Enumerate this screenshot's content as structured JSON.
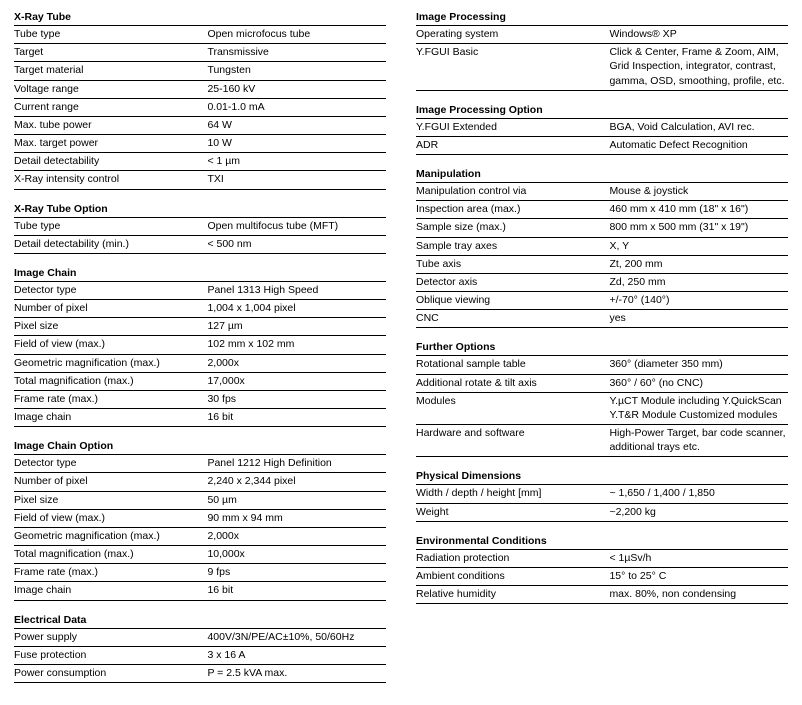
{
  "left": [
    {
      "title": "X-Ray Tube",
      "rows": [
        {
          "label": "Tube type",
          "value": "Open microfocus tube"
        },
        {
          "label": "Target",
          "value": "Transmissive"
        },
        {
          "label": "Target material",
          "value": "Tungsten"
        },
        {
          "label": "Voltage range",
          "value": "25-160 kV"
        },
        {
          "label": "Current range",
          "value": "0.01-1.0 mA"
        },
        {
          "label": "Max. tube power",
          "value": "64 W"
        },
        {
          "label": "Max. target power",
          "value": "10 W"
        },
        {
          "label": "Detail detectability",
          "value": "< 1 µm"
        },
        {
          "label": "X-Ray intensity control",
          "value": "TXI"
        }
      ]
    },
    {
      "title": "X-Ray Tube Option",
      "rows": [
        {
          "label": "Tube type",
          "value": "Open multifocus tube (MFT)"
        },
        {
          "label": "Detail detectability (min.)",
          "value": "< 500 nm"
        }
      ]
    },
    {
      "title": "Image Chain",
      "rows": [
        {
          "label": "Detector type",
          "value": "Panel 1313 High Speed"
        },
        {
          "label": "Number of pixel",
          "value": "1,004 x 1,004 pixel"
        },
        {
          "label": "Pixel size",
          "value": "127 µm"
        },
        {
          "label": "Field of view (max.)",
          "value": "102 mm x 102 mm"
        },
        {
          "label": "Geometric magnification (max.)",
          "value": "2,000x"
        },
        {
          "label": "Total magnification (max.)",
          "value": "17,000x"
        },
        {
          "label": "Frame rate (max.)",
          "value": "30 fps"
        },
        {
          "label": "Image chain",
          "value": "16 bit"
        }
      ]
    },
    {
      "title": "Image Chain Option",
      "rows": [
        {
          "label": "Detector type",
          "value": "Panel 1212 High Definition"
        },
        {
          "label": "Number of pixel",
          "value": "2,240 x 2,344 pixel"
        },
        {
          "label": "Pixel size",
          "value": "50 µm"
        },
        {
          "label": "Field of view (max.)",
          "value": "90 mm x 94 mm"
        },
        {
          "label": "Geometric magnification (max.)",
          "value": "2,000x"
        },
        {
          "label": "Total magnification (max.)",
          "value": "10,000x"
        },
        {
          "label": "Frame rate (max.)",
          "value": "9 fps"
        },
        {
          "label": "Image chain",
          "value": "16 bit"
        }
      ]
    },
    {
      "title": "Electrical Data",
      "rows": [
        {
          "label": "Power supply",
          "value": "400V/3N/PE/AC±10%, 50/60Hz"
        },
        {
          "label": "Fuse protection",
          "value": "3 x 16 A"
        },
        {
          "label": "Power consumption",
          "value": "P = 2.5 kVA max."
        }
      ]
    }
  ],
  "right": [
    {
      "title": "Image Processing",
      "rows": [
        {
          "label": "Operating system",
          "value": "Windows® XP"
        },
        {
          "label": "Y.FGUI Basic",
          "value": "Click & Center, Frame & Zoom, AIM, Grid Inspection, integrator, contrast, gamma, OSD, smoothing,  profile, etc."
        }
      ]
    },
    {
      "title": "Image Processing Option",
      "rows": [
        {
          "label": "Y.FGUI Extended",
          "value": "BGA, Void Calculation, AVI rec."
        },
        {
          "label": "ADR",
          "value": "Automatic Defect Recognition"
        }
      ]
    },
    {
      "title": "Manipulation",
      "rows": [
        {
          "label": "Manipulation control via",
          "value": "Mouse & joystick"
        },
        {
          "label": "Inspection area (max.)",
          "value": "460 mm x 410 mm (18\" x 16\")"
        },
        {
          "label": "Sample size (max.)",
          "value": "800 mm x 500 mm (31\" x 19\")"
        },
        {
          "label": "Sample tray axes",
          "value": "X, Y"
        },
        {
          "label": "Tube axis",
          "value": "Zt, 200 mm"
        },
        {
          "label": "Detector axis",
          "value": "Zd, 250 mm"
        },
        {
          "label": "Oblique viewing",
          "value": "+/-70° (140°)"
        },
        {
          "label": "CNC",
          "value": "yes"
        }
      ]
    },
    {
      "title": "Further Options",
      "rows": [
        {
          "label": "Rotational sample table",
          "value": "360° (diameter 350 mm)"
        },
        {
          "label": "Additional rotate & tilt axis",
          "value": "360° / 60° (no CNC)"
        },
        {
          "label": "Modules",
          "value": "Y.µCT Module including Y.QuickScan\nY.T&R Module\nCustomized modules"
        },
        {
          "label": "Hardware and software",
          "value": "High-Power Target, bar code scanner, additional trays etc."
        }
      ]
    },
    {
      "title": "Physical Dimensions",
      "rows": [
        {
          "label": "Width / depth / height [mm]",
          "value": "~ 1,650 / 1,400 / 1,850"
        },
        {
          "label": "Weight",
          "value": "~2,200 kg"
        }
      ]
    },
    {
      "title": "Environmental Conditions",
      "rows": [
        {
          "label": "Radiation protection",
          "value": "< 1µSv/h"
        },
        {
          "label": "Ambient conditions",
          "value": "15° to 25° C"
        },
        {
          "label": "Relative humidity",
          "value": "max. 80%, non condensing"
        }
      ]
    }
  ]
}
